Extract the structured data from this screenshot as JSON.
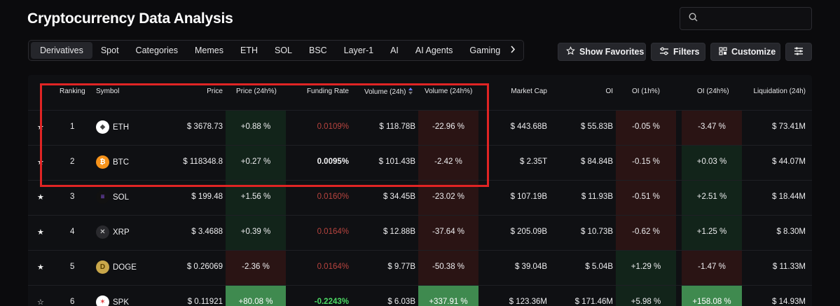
{
  "page": {
    "title": "Cryptocurrency Data Analysis",
    "search_placeholder": ""
  },
  "tabs": [
    {
      "label": "Derivatives",
      "active": true
    },
    {
      "label": "Spot"
    },
    {
      "label": "Categories"
    },
    {
      "label": "Memes"
    },
    {
      "label": "ETH"
    },
    {
      "label": "SOL"
    },
    {
      "label": "BSC"
    },
    {
      "label": "Layer-1"
    },
    {
      "label": "AI"
    },
    {
      "label": "AI Agents"
    },
    {
      "label": "Gaming"
    }
  ],
  "toolbar": {
    "show_favorites": "Show Favorites",
    "filters": "Filters",
    "customize": "Customize"
  },
  "table": {
    "headers": {
      "ranking": "Ranking",
      "symbol": "Symbol",
      "price": "Price",
      "price_24h": "Price (24h%)",
      "funding_rate": "Funding Rate",
      "volume_24h": "Volume (24h)",
      "volume_24h_pct": "Volume (24h%)",
      "market_cap": "Market Cap",
      "oi": "OI",
      "oi_1h": "OI (1h%)",
      "oi_24h": "OI (24h%)",
      "liquidation_24h": "Liquidation (24h)"
    },
    "rows": [
      {
        "rank": "1",
        "symbol": "ETH",
        "price": "$ 3678.73",
        "price_pct": "+0.88 %",
        "funding": "0.0109%",
        "volume": "$ 118.78B",
        "volume_pct": "-22.96 %",
        "market_cap": "$ 443.68B",
        "oi": "$ 55.83B",
        "oi_1h": "-0.05 %",
        "oi_24h": "-3.47 %",
        "liquidation": "$ 73.41M"
      },
      {
        "rank": "2",
        "symbol": "BTC",
        "price": "$ 118348.8",
        "price_pct": "+0.27 %",
        "funding": "0.0095%",
        "volume": "$ 101.43B",
        "volume_pct": "-2.42 %",
        "market_cap": "$ 2.35T",
        "oi": "$ 84.84B",
        "oi_1h": "-0.15 %",
        "oi_24h": "+0.03 %",
        "liquidation": "$ 44.07M"
      },
      {
        "rank": "3",
        "symbol": "SOL",
        "price": "$ 199.48",
        "price_pct": "+1.56 %",
        "funding": "0.0160%",
        "volume": "$ 34.45B",
        "volume_pct": "-23.02 %",
        "market_cap": "$ 107.19B",
        "oi": "$ 11.93B",
        "oi_1h": "-0.51 %",
        "oi_24h": "+2.51 %",
        "liquidation": "$ 18.44M"
      },
      {
        "rank": "4",
        "symbol": "XRP",
        "price": "$ 3.4688",
        "price_pct": "+0.39 %",
        "funding": "0.0164%",
        "volume": "$ 12.88B",
        "volume_pct": "-37.64 %",
        "market_cap": "$ 205.09B",
        "oi": "$ 10.73B",
        "oi_1h": "-0.62 %",
        "oi_24h": "+1.25 %",
        "liquidation": "$ 8.30M"
      },
      {
        "rank": "5",
        "symbol": "DOGE",
        "price": "$ 0.26069",
        "price_pct": "-2.36 %",
        "funding": "0.0164%",
        "volume": "$ 9.77B",
        "volume_pct": "-50.38 %",
        "market_cap": "$ 39.04B",
        "oi": "$ 5.04B",
        "oi_1h": "+1.29 %",
        "oi_24h": "-1.47 %",
        "liquidation": "$ 11.33M"
      },
      {
        "rank": "6",
        "symbol": "SPK",
        "price": "$ 0.11921",
        "price_pct": "+80.08 %",
        "funding": "-0.2243%",
        "volume": "$ 6.03B",
        "volume_pct": "+337.91 %",
        "market_cap": "$ 123.36M",
        "oi": "$ 171.46M",
        "oi_1h": "+5.98 %",
        "oi_24h": "+158.08 %",
        "liquidation": "$ 14.93M"
      }
    ]
  },
  "colors": {
    "highlight_box": "#e02424",
    "positive_bg": "#12241a",
    "negative_bg": "#2a1414",
    "strong_positive_bg": "#3f8a4f",
    "funding_red": "#b8443f"
  }
}
